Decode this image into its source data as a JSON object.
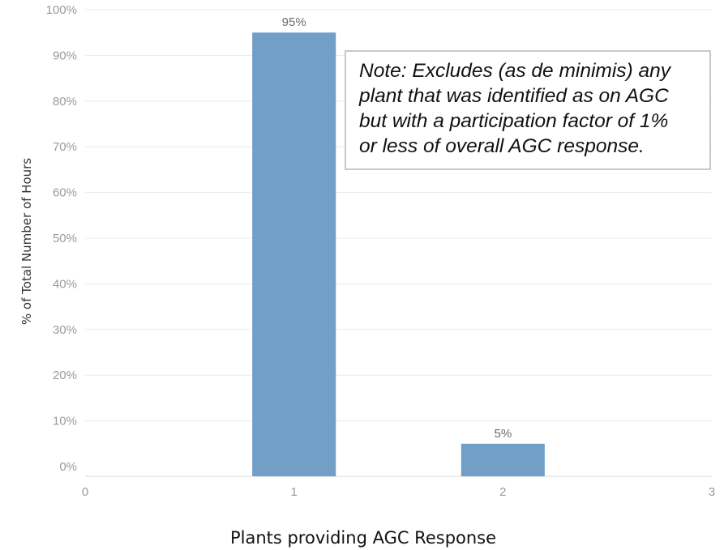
{
  "chart_data": {
    "type": "bar",
    "x": [
      1,
      2
    ],
    "values": [
      95,
      5
    ],
    "data_labels": [
      "95%",
      "5%"
    ],
    "xlabel": "Plants providing AGC Response",
    "ylabel": "% of Total Number of Hours",
    "xlim": [
      0,
      3
    ],
    "ylim": [
      0,
      100
    ],
    "x_ticks": [
      "0",
      "1",
      "2",
      "3"
    ],
    "y_ticks": [
      "0%",
      "10%",
      "20%",
      "30%",
      "40%",
      "50%",
      "60%",
      "70%",
      "80%",
      "90%",
      "100%"
    ],
    "bar_color": "#729fc6",
    "grid": "horizontal",
    "note": "Note: Excludes (as de minimis) any\nplant that was identified as on AGC\nbut with a participation factor of 1%\nor less of overall AGC response."
  }
}
